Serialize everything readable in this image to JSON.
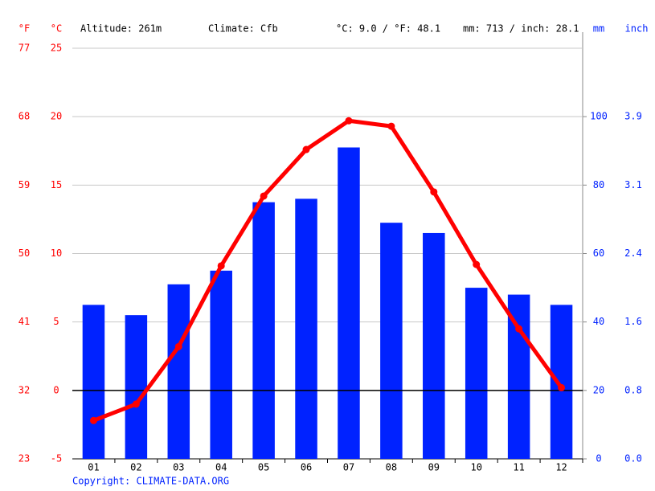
{
  "chart_data": {
    "type": "climate",
    "header": {
      "altitude": "Altitude: 261m",
      "climate": "Climate: Cfb",
      "temp": "°C: 9.0 / °F: 48.1",
      "precip": "mm: 713 / inch: 28.1"
    },
    "unit_labels": {
      "f": "°F",
      "c": "°C",
      "mm": "mm",
      "inch": "inch"
    },
    "copyright": "Copyright: CLIMATE-DATA.ORG",
    "categories": [
      "01",
      "02",
      "03",
      "04",
      "05",
      "06",
      "07",
      "08",
      "09",
      "10",
      "11",
      "12"
    ],
    "series": [
      {
        "name": "Precipitation (mm)",
        "color": "#0022ff",
        "axis": "y2",
        "values": [
          45,
          42,
          51,
          55,
          75,
          76,
          91,
          69,
          66,
          50,
          48,
          45
        ]
      },
      {
        "name": "Temperature (°C)",
        "color": "#ff0000",
        "values": [
          -2.2,
          -1.0,
          3.2,
          9.1,
          14.2,
          17.6,
          19.7,
          19.3,
          14.5,
          9.2,
          4.5,
          0.2
        ]
      }
    ],
    "ylim": [
      -5,
      25
    ],
    "yticks": [
      -5,
      0,
      5,
      10,
      15,
      20,
      25
    ],
    "yticks_f": [
      23,
      32,
      41,
      50,
      59,
      68,
      77
    ],
    "y2lim": [
      0,
      120
    ],
    "y2ticks": [
      0,
      20,
      40,
      60,
      80,
      100
    ],
    "y2ticks_inch": [
      {
        "value": 0,
        "label": "0.0"
      },
      {
        "value": 0.8,
        "label": "0.8"
      },
      {
        "value": 1.6,
        "label": "1.6"
      },
      {
        "value": 2.4,
        "label": "2.4"
      },
      {
        "value": 3.1,
        "label": "3.1"
      },
      {
        "value": 3.9,
        "label": "3.9"
      }
    ],
    "grid": true
  }
}
